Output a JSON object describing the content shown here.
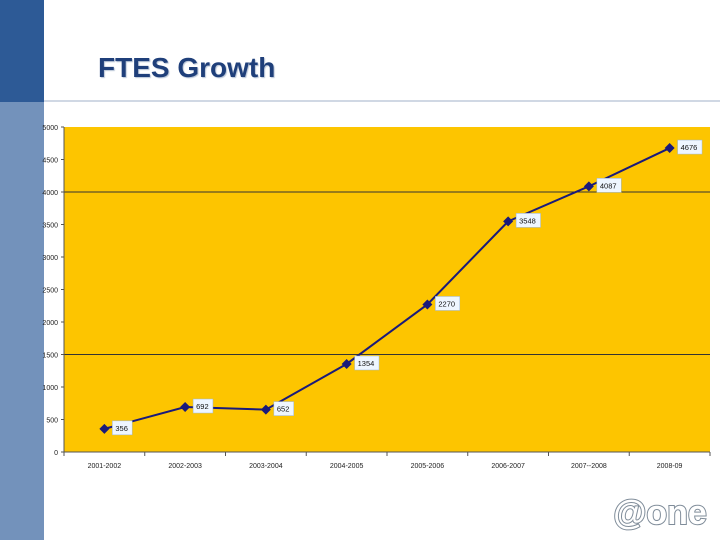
{
  "slide": {
    "title": "FTES Growth",
    "logo_text": "@one"
  },
  "colors": {
    "plot_background": "#fdc500",
    "line": "#1a1a7a",
    "marker": "#1a1a7a",
    "label_background": "#eef6ff",
    "title": "#1f3f7a",
    "side_band_dark": "#2d5a96",
    "side_band_light": "#7392bb"
  },
  "chart_data": {
    "type": "line",
    "title": "",
    "xlabel": "",
    "ylabel": "",
    "categories": [
      "2001-2002",
      "2002-2003",
      "2003-2004",
      "2004-2005",
      "2005-2006",
      "2006-2007",
      "2007--2008",
      "2008-09"
    ],
    "series": [
      {
        "values": [
          356,
          692,
          652,
          1354,
          2270,
          3548,
          4087,
          4676
        ]
      }
    ],
    "data_labels": [
      "356",
      "692",
      "652",
      "1354",
      "2270",
      "3548",
      "4087",
      "4676"
    ],
    "y_ticks": [
      0,
      500,
      1000,
      1500,
      2000,
      2500,
      3000,
      3500,
      4000,
      4500,
      5000
    ],
    "ylim": [
      0,
      5000
    ],
    "gridlines": [
      1500,
      4000
    ],
    "legend": "none",
    "marker": "diamond"
  }
}
